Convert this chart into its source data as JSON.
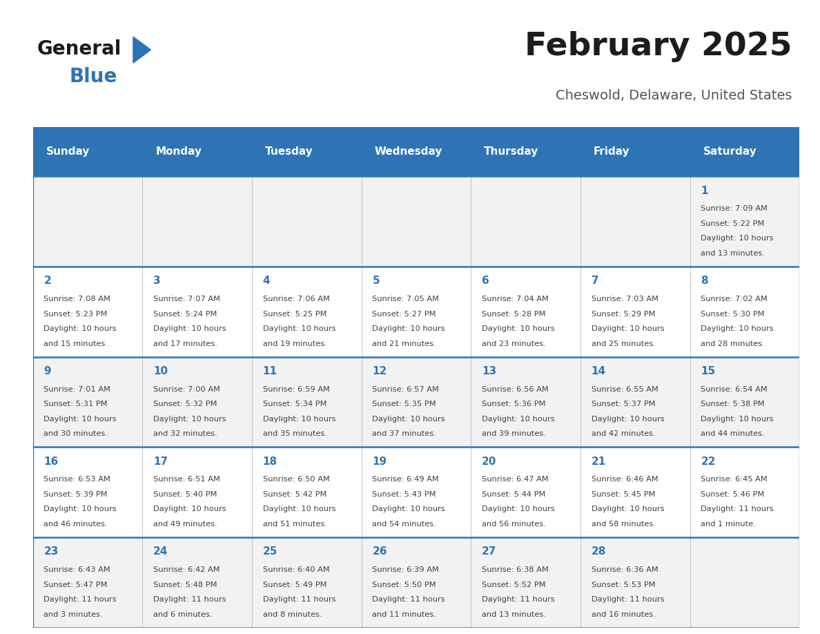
{
  "title": "February 2025",
  "subtitle": "Cheswold, Delaware, United States",
  "days_of_week": [
    "Sunday",
    "Monday",
    "Tuesday",
    "Wednesday",
    "Thursday",
    "Friday",
    "Saturday"
  ],
  "header_bg": "#2E74B5",
  "header_text": "#FFFFFF",
  "row_bg_odd": "#F2F2F2",
  "row_bg_even": "#FFFFFF",
  "day_number_color": "#2E74B5",
  "text_color": "#404040",
  "divider_color": "#2E74B5",
  "divider_light": "#BBBBBB",
  "calendar_data": [
    [
      {
        "day": "",
        "sunrise": "",
        "sunset": "",
        "daylight": ""
      },
      {
        "day": "",
        "sunrise": "",
        "sunset": "",
        "daylight": ""
      },
      {
        "day": "",
        "sunrise": "",
        "sunset": "",
        "daylight": ""
      },
      {
        "day": "",
        "sunrise": "",
        "sunset": "",
        "daylight": ""
      },
      {
        "day": "",
        "sunrise": "",
        "sunset": "",
        "daylight": ""
      },
      {
        "day": "",
        "sunrise": "",
        "sunset": "",
        "daylight": ""
      },
      {
        "day": "1",
        "sunrise": "Sunrise: 7:09 AM",
        "sunset": "Sunset: 5:22 PM",
        "daylight": "Daylight: 10 hours\nand 13 minutes."
      }
    ],
    [
      {
        "day": "2",
        "sunrise": "Sunrise: 7:08 AM",
        "sunset": "Sunset: 5:23 PM",
        "daylight": "Daylight: 10 hours\nand 15 minutes."
      },
      {
        "day": "3",
        "sunrise": "Sunrise: 7:07 AM",
        "sunset": "Sunset: 5:24 PM",
        "daylight": "Daylight: 10 hours\nand 17 minutes."
      },
      {
        "day": "4",
        "sunrise": "Sunrise: 7:06 AM",
        "sunset": "Sunset: 5:25 PM",
        "daylight": "Daylight: 10 hours\nand 19 minutes."
      },
      {
        "day": "5",
        "sunrise": "Sunrise: 7:05 AM",
        "sunset": "Sunset: 5:27 PM",
        "daylight": "Daylight: 10 hours\nand 21 minutes."
      },
      {
        "day": "6",
        "sunrise": "Sunrise: 7:04 AM",
        "sunset": "Sunset: 5:28 PM",
        "daylight": "Daylight: 10 hours\nand 23 minutes."
      },
      {
        "day": "7",
        "sunrise": "Sunrise: 7:03 AM",
        "sunset": "Sunset: 5:29 PM",
        "daylight": "Daylight: 10 hours\nand 25 minutes."
      },
      {
        "day": "8",
        "sunrise": "Sunrise: 7:02 AM",
        "sunset": "Sunset: 5:30 PM",
        "daylight": "Daylight: 10 hours\nand 28 minutes."
      }
    ],
    [
      {
        "day": "9",
        "sunrise": "Sunrise: 7:01 AM",
        "sunset": "Sunset: 5:31 PM",
        "daylight": "Daylight: 10 hours\nand 30 minutes."
      },
      {
        "day": "10",
        "sunrise": "Sunrise: 7:00 AM",
        "sunset": "Sunset: 5:32 PM",
        "daylight": "Daylight: 10 hours\nand 32 minutes."
      },
      {
        "day": "11",
        "sunrise": "Sunrise: 6:59 AM",
        "sunset": "Sunset: 5:34 PM",
        "daylight": "Daylight: 10 hours\nand 35 minutes."
      },
      {
        "day": "12",
        "sunrise": "Sunrise: 6:57 AM",
        "sunset": "Sunset: 5:35 PM",
        "daylight": "Daylight: 10 hours\nand 37 minutes."
      },
      {
        "day": "13",
        "sunrise": "Sunrise: 6:56 AM",
        "sunset": "Sunset: 5:36 PM",
        "daylight": "Daylight: 10 hours\nand 39 minutes."
      },
      {
        "day": "14",
        "sunrise": "Sunrise: 6:55 AM",
        "sunset": "Sunset: 5:37 PM",
        "daylight": "Daylight: 10 hours\nand 42 minutes."
      },
      {
        "day": "15",
        "sunrise": "Sunrise: 6:54 AM",
        "sunset": "Sunset: 5:38 PM",
        "daylight": "Daylight: 10 hours\nand 44 minutes."
      }
    ],
    [
      {
        "day": "16",
        "sunrise": "Sunrise: 6:53 AM",
        "sunset": "Sunset: 5:39 PM",
        "daylight": "Daylight: 10 hours\nand 46 minutes."
      },
      {
        "day": "17",
        "sunrise": "Sunrise: 6:51 AM",
        "sunset": "Sunset: 5:40 PM",
        "daylight": "Daylight: 10 hours\nand 49 minutes."
      },
      {
        "day": "18",
        "sunrise": "Sunrise: 6:50 AM",
        "sunset": "Sunset: 5:42 PM",
        "daylight": "Daylight: 10 hours\nand 51 minutes."
      },
      {
        "day": "19",
        "sunrise": "Sunrise: 6:49 AM",
        "sunset": "Sunset: 5:43 PM",
        "daylight": "Daylight: 10 hours\nand 54 minutes."
      },
      {
        "day": "20",
        "sunrise": "Sunrise: 6:47 AM",
        "sunset": "Sunset: 5:44 PM",
        "daylight": "Daylight: 10 hours\nand 56 minutes."
      },
      {
        "day": "21",
        "sunrise": "Sunrise: 6:46 AM",
        "sunset": "Sunset: 5:45 PM",
        "daylight": "Daylight: 10 hours\nand 58 minutes."
      },
      {
        "day": "22",
        "sunrise": "Sunrise: 6:45 AM",
        "sunset": "Sunset: 5:46 PM",
        "daylight": "Daylight: 11 hours\nand 1 minute."
      }
    ],
    [
      {
        "day": "23",
        "sunrise": "Sunrise: 6:43 AM",
        "sunset": "Sunset: 5:47 PM",
        "daylight": "Daylight: 11 hours\nand 3 minutes."
      },
      {
        "day": "24",
        "sunrise": "Sunrise: 6:42 AM",
        "sunset": "Sunset: 5:48 PM",
        "daylight": "Daylight: 11 hours\nand 6 minutes."
      },
      {
        "day": "25",
        "sunrise": "Sunrise: 6:40 AM",
        "sunset": "Sunset: 5:49 PM",
        "daylight": "Daylight: 11 hours\nand 8 minutes."
      },
      {
        "day": "26",
        "sunrise": "Sunrise: 6:39 AM",
        "sunset": "Sunset: 5:50 PM",
        "daylight": "Daylight: 11 hours\nand 11 minutes."
      },
      {
        "day": "27",
        "sunrise": "Sunrise: 6:38 AM",
        "sunset": "Sunset: 5:52 PM",
        "daylight": "Daylight: 11 hours\nand 13 minutes."
      },
      {
        "day": "28",
        "sunrise": "Sunrise: 6:36 AM",
        "sunset": "Sunset: 5:53 PM",
        "daylight": "Daylight: 11 hours\nand 16 minutes."
      },
      {
        "day": "",
        "sunrise": "",
        "sunset": "",
        "daylight": ""
      }
    ]
  ]
}
